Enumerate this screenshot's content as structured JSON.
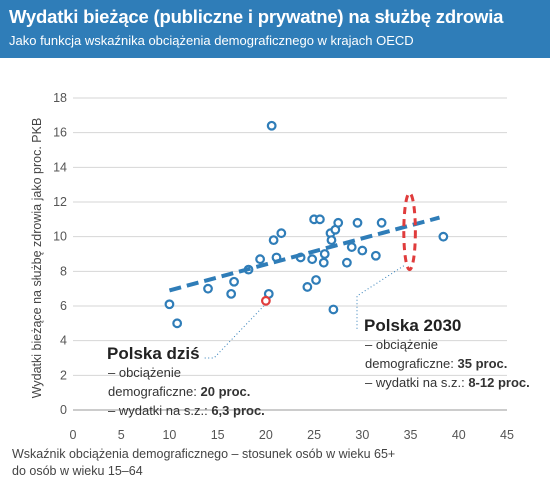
{
  "header": {
    "title": "Wydatki bieżące (publiczne i prywatne) na służbę zdrowia",
    "subtitle": "Jako funkcja wskaźnika obciążenia demograficznego w krajach OECD"
  },
  "colors": {
    "header_bg": "#2f7db8",
    "point": "#2f7db8",
    "highlight_point": "#e03c3c",
    "trend": "#2f7db8",
    "ellipse": "#e03c3c"
  },
  "chart_data": {
    "type": "scatter",
    "title": "Wydatki bieżące (publiczne i prywatne) na służbę zdrowia",
    "subtitle": "Jako funkcja wskaźnika obciążenia demograficznego w krajach OECD",
    "xlabel_lines": [
      "Wskaźnik obciążenia demograficznego – stosunek osób w wieku 65+",
      "do osób w wieku 15–64"
    ],
    "ylabel": "Wydatki bieżące na służbę zdrowia jako proc. PKB",
    "xlim": [
      0,
      45
    ],
    "ylim": [
      0,
      18
    ],
    "xticks": [
      "0",
      "5",
      "10",
      "15",
      "20",
      "25",
      "30",
      "35",
      "40",
      "45"
    ],
    "yticks": [
      "0",
      "2",
      "4",
      "6",
      "8",
      "10",
      "12",
      "14",
      "16",
      "18"
    ],
    "grid": "horizontal",
    "points": [
      {
        "x": 10.0,
        "y": 6.1
      },
      {
        "x": 10.8,
        "y": 5.0
      },
      {
        "x": 14.0,
        "y": 7.0
      },
      {
        "x": 16.4,
        "y": 6.7
      },
      {
        "x": 16.7,
        "y": 7.4
      },
      {
        "x": 18.2,
        "y": 8.1
      },
      {
        "x": 19.4,
        "y": 8.7
      },
      {
        "x": 20.3,
        "y": 6.7
      },
      {
        "x": 20.6,
        "y": 16.4
      },
      {
        "x": 20.8,
        "y": 9.8
      },
      {
        "x": 21.1,
        "y": 8.8
      },
      {
        "x": 21.6,
        "y": 10.2
      },
      {
        "x": 23.6,
        "y": 8.8
      },
      {
        "x": 24.3,
        "y": 7.1
      },
      {
        "x": 24.8,
        "y": 8.7
      },
      {
        "x": 25.0,
        "y": 11.0
      },
      {
        "x": 25.2,
        "y": 7.5
      },
      {
        "x": 25.6,
        "y": 11.0
      },
      {
        "x": 26.0,
        "y": 8.5
      },
      {
        "x": 26.1,
        "y": 9.0
      },
      {
        "x": 26.7,
        "y": 10.2
      },
      {
        "x": 26.8,
        "y": 9.8
      },
      {
        "x": 27.0,
        "y": 5.8
      },
      {
        "x": 27.2,
        "y": 10.4
      },
      {
        "x": 27.5,
        "y": 10.8
      },
      {
        "x": 28.4,
        "y": 8.5
      },
      {
        "x": 28.9,
        "y": 9.4
      },
      {
        "x": 29.5,
        "y": 10.8
      },
      {
        "x": 30.0,
        "y": 9.2
      },
      {
        "x": 31.4,
        "y": 8.9
      },
      {
        "x": 32.0,
        "y": 10.8
      },
      {
        "x": 38.4,
        "y": 10.0
      }
    ],
    "highlight_point": {
      "x": 20.0,
      "y": 6.3
    },
    "trend_line": {
      "x": [
        10,
        38
      ],
      "y": [
        6.9,
        11.1
      ]
    },
    "ellipse": {
      "cx": 34.9,
      "cy": 10.3,
      "rx": 0.6,
      "ry": 2.2
    },
    "annotations": [
      {
        "id": "polska-dzis",
        "title": "Polska dziś",
        "line1": "– obciążenie",
        "line2_text": "demograficzne: ",
        "line2_bold": "20 proc.",
        "line3_text": "– wydatki na s.z.: ",
        "line3_bold": "6,3 proc."
      },
      {
        "id": "polska-2030",
        "title": "Polska 2030",
        "line1": "– obciążenie",
        "line2_text": "demograficzne: ",
        "line2_bold": "35 proc.",
        "line3_text": "– wydatki na s.z.: ",
        "line3_bold": "8-12 proc."
      }
    ]
  }
}
